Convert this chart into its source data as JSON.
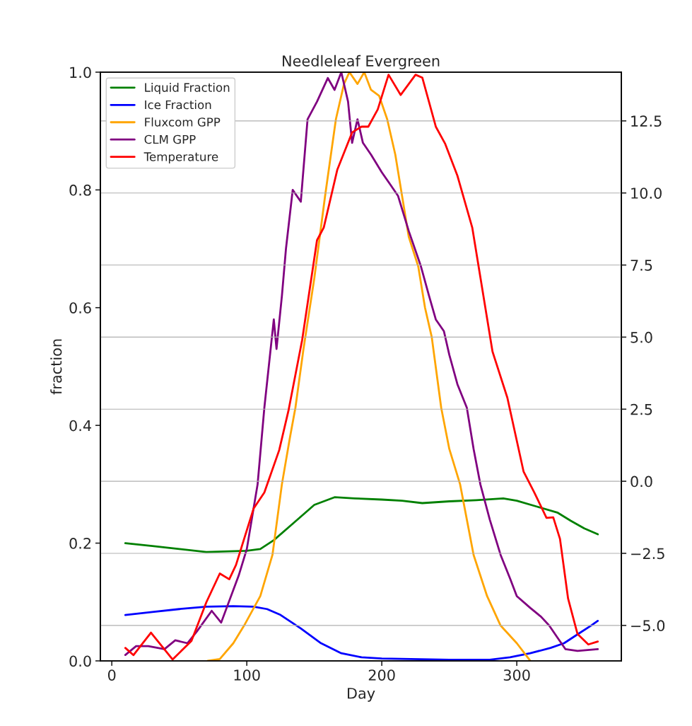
{
  "chart_data": {
    "type": "line",
    "title": "Needleleaf Evergreen",
    "xlabel": "Day",
    "ylabel": "fraction",
    "xlim": [
      -8.5,
      377.5
    ],
    "xticks": [
      0,
      100,
      200,
      300
    ],
    "ylim": [
      0,
      1
    ],
    "yticks": [
      {
        "value": 0,
        "label": "0.0"
      },
      0.2,
      0.4,
      0.6,
      0.8,
      {
        "value": 1,
        "label": "1.0"
      }
    ],
    "y2lim": [
      -6.23,
      14.19
    ],
    "y2ticks": [
      {
        "value": -5,
        "label": "−5.0"
      },
      {
        "value": -2.5,
        "label": "−2.5"
      },
      {
        "value": 0,
        "label": "0.0"
      },
      {
        "value": 2.5,
        "label": "2.5"
      },
      {
        "value": 5,
        "label": "5.0"
      },
      {
        "value": 7.5,
        "label": "7.5"
      },
      {
        "value": 10,
        "label": "10.0"
      },
      {
        "value": 12.5,
        "label": "12.5"
      }
    ],
    "grid": "y2",
    "legend": "top left",
    "line_style": "solid",
    "series": [
      {
        "name": "Liquid Fraction",
        "color": "#008000",
        "x": [
          10,
          30,
          50,
          70,
          100,
          110,
          120,
          135,
          150,
          165,
          180,
          200,
          215,
          230,
          250,
          270,
          290,
          300,
          315,
          330,
          340,
          350,
          360
        ],
        "values": [
          0.2,
          0.195,
          0.19,
          0.185,
          0.187,
          0.19,
          0.205,
          0.235,
          0.265,
          0.278,
          0.276,
          0.274,
          0.272,
          0.268,
          0.271,
          0.273,
          0.276,
          0.272,
          0.262,
          0.252,
          0.238,
          0.225,
          0.215
        ]
      },
      {
        "name": "Ice Fraction",
        "color": "#0000ff",
        "x": [
          10,
          30,
          50,
          70,
          90,
          105,
          115,
          125,
          140,
          155,
          170,
          185,
          200,
          250,
          280,
          295,
          310,
          325,
          335,
          345,
          355,
          360
        ],
        "values": [
          0.078,
          0.083,
          0.088,
          0.092,
          0.093,
          0.092,
          0.088,
          0.078,
          0.055,
          0.03,
          0.013,
          0.006,
          0.004,
          0.002,
          0.002,
          0.006,
          0.013,
          0.022,
          0.03,
          0.045,
          0.06,
          0.068
        ]
      },
      {
        "name": "Fluxcom GPP",
        "color": "#ffa500",
        "x": [
          71,
          80,
          90,
          98,
          110,
          119,
          126,
          132,
          136,
          142,
          150,
          158,
          166,
          172,
          176,
          182,
          187,
          192,
          198,
          204,
          210,
          215,
          220,
          227,
          232,
          237,
          244,
          250,
          258,
          268,
          278,
          288,
          300,
          310
        ],
        "values": [
          0.0,
          0.003,
          0.03,
          0.06,
          0.11,
          0.18,
          0.3,
          0.38,
          0.43,
          0.53,
          0.65,
          0.79,
          0.92,
          0.98,
          1.0,
          0.98,
          1.0,
          0.97,
          0.96,
          0.92,
          0.86,
          0.79,
          0.72,
          0.67,
          0.6,
          0.55,
          0.43,
          0.36,
          0.3,
          0.18,
          0.11,
          0.06,
          0.03,
          0.0
        ]
      },
      {
        "name": "CLM GPP",
        "color": "#800080",
        "x": [
          10,
          18,
          27,
          39,
          47,
          56,
          63,
          74,
          81,
          94,
          100,
          108,
          113,
          120,
          122,
          126,
          129,
          134,
          140,
          145,
          152,
          160,
          165,
          170,
          175,
          178,
          182,
          186,
          192,
          200,
          206,
          212,
          220,
          229,
          235,
          240,
          246,
          250,
          256,
          263,
          268,
          273,
          280,
          288,
          295,
          300,
          310,
          318,
          324,
          330,
          336,
          345,
          360
        ],
        "values": [
          0.01,
          0.025,
          0.025,
          0.02,
          0.035,
          0.03,
          0.05,
          0.085,
          0.065,
          0.145,
          0.19,
          0.3,
          0.43,
          0.58,
          0.53,
          0.62,
          0.7,
          0.8,
          0.78,
          0.92,
          0.95,
          0.99,
          0.97,
          1.0,
          0.95,
          0.88,
          0.92,
          0.88,
          0.86,
          0.83,
          0.81,
          0.79,
          0.73,
          0.67,
          0.62,
          0.58,
          0.56,
          0.52,
          0.47,
          0.43,
          0.36,
          0.3,
          0.24,
          0.18,
          0.14,
          0.11,
          0.09,
          0.075,
          0.06,
          0.04,
          0.02,
          0.017,
          0.02
        ]
      },
      {
        "name": "Temperature",
        "color": "#ff0000",
        "axis": "y2",
        "x": [
          10,
          16,
          29,
          45,
          59,
          70,
          80,
          87,
          92,
          105,
          113,
          124,
          131,
          141,
          152,
          157,
          167,
          178,
          185,
          190,
          197,
          205,
          214,
          225,
          230,
          240,
          247,
          256,
          267,
          282,
          293,
          305,
          313,
          322,
          327,
          332,
          338,
          345,
          353,
          360
        ],
        "values": [
          -5.78,
          -6.03,
          -5.25,
          -6.18,
          -5.54,
          -4.2,
          -3.2,
          -3.4,
          -2.9,
          -0.95,
          -0.39,
          1.08,
          2.48,
          4.9,
          8.36,
          8.8,
          10.8,
          12.1,
          12.3,
          12.3,
          12.9,
          14.1,
          13.4,
          14.1,
          14.0,
          12.3,
          11.7,
          10.6,
          8.8,
          4.5,
          2.9,
          0.34,
          -0.39,
          -1.27,
          -1.25,
          -2.0,
          -4.07,
          -5.3,
          -5.66,
          -5.56
        ]
      }
    ]
  }
}
